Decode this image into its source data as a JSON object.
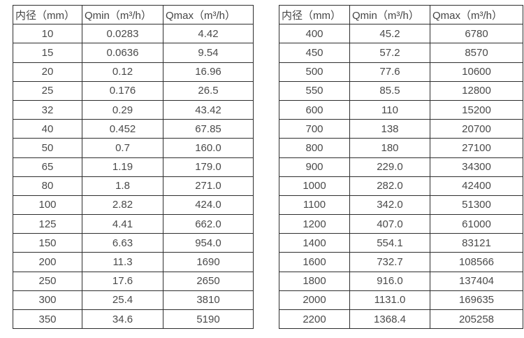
{
  "colors": {
    "background": "#ffffff",
    "border": "#2e2e2e",
    "text": "#4a4a4a"
  },
  "tables": [
    {
      "name": "flow-spec-small-diameters",
      "headers": [
        "内径（mm）",
        "Qmin（m³/h）",
        "Qmax（m³/h）"
      ],
      "rows": [
        [
          "10",
          "0.0283",
          "4.42"
        ],
        [
          "15",
          "0.0636",
          "9.54"
        ],
        [
          "20",
          "0.12",
          "16.96"
        ],
        [
          "25",
          "0.176",
          "26.5"
        ],
        [
          "32",
          "0.29",
          "43.42"
        ],
        [
          "40",
          "0.452",
          "67.85"
        ],
        [
          "50",
          "0.7",
          "160.0"
        ],
        [
          "65",
          "1.19",
          "179.0"
        ],
        [
          "80",
          "1.8",
          "271.0"
        ],
        [
          "100",
          "2.82",
          "424.0"
        ],
        [
          "125",
          "4.41",
          "662.0"
        ],
        [
          "150",
          "6.63",
          "954.0"
        ],
        [
          "200",
          "11.3",
          "1690"
        ],
        [
          "250",
          "17.6",
          "2650"
        ],
        [
          "300",
          "25.4",
          "3810"
        ],
        [
          "350",
          "34.6",
          "5190"
        ]
      ]
    },
    {
      "name": "flow-spec-large-diameters",
      "headers": [
        "内径（mm）",
        "Qmin（m³/h）",
        "Qmax（m³/h）"
      ],
      "rows": [
        [
          "400",
          "45.2",
          "6780"
        ],
        [
          "450",
          "57.2",
          "8570"
        ],
        [
          "500",
          "77.6",
          "10600"
        ],
        [
          "550",
          "85.5",
          "12800"
        ],
        [
          "600",
          "110",
          "15200"
        ],
        [
          "700",
          "138",
          "20700"
        ],
        [
          "800",
          "180",
          "27100"
        ],
        [
          "900",
          "229.0",
          "34300"
        ],
        [
          "1000",
          "282.0",
          "42400"
        ],
        [
          "1100",
          "342.0",
          "51300"
        ],
        [
          "1200",
          "407.0",
          "61000"
        ],
        [
          "1400",
          "554.1",
          "83121"
        ],
        [
          "1600",
          "732.7",
          "108566"
        ],
        [
          "1800",
          "916.0",
          "137404"
        ],
        [
          "2000",
          "1131.0",
          "169635"
        ],
        [
          "2200",
          "1368.4",
          "205258"
        ]
      ]
    }
  ]
}
